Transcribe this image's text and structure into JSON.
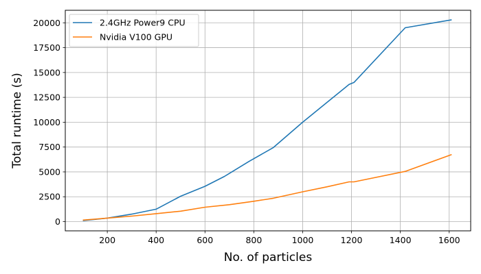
{
  "chart_data": {
    "type": "line",
    "title": "",
    "xlabel": "No. of particles",
    "ylabel": "Total runtime (s)",
    "xlim": [
      28,
      1688
    ],
    "ylim": [
      -930,
      21260
    ],
    "xticks": [
      200,
      400,
      600,
      800,
      1000,
      1200,
      1400,
      1600
    ],
    "yticks": [
      0,
      2500,
      5000,
      7500,
      10000,
      12500,
      15000,
      17500,
      20000
    ],
    "grid": true,
    "legend": {
      "position": "top-left"
    },
    "series": [
      {
        "name": "2.4GHz Power9 CPU",
        "color": "#1f77b4",
        "x": [
          100,
          200,
          300,
          400,
          500,
          600,
          680,
          780,
          880,
          1000,
          1100,
          1190,
          1210,
          1420,
          1610
        ],
        "y": [
          100,
          350,
          750,
          1250,
          2550,
          3550,
          4550,
          6050,
          7450,
          10000,
          12000,
          13800,
          14000,
          19500,
          20300
        ]
      },
      {
        "name": "Nvidia V100 GPU",
        "color": "#ff7f0e",
        "x": [
          100,
          200,
          300,
          400,
          500,
          600,
          700,
          800,
          880,
          1000,
          1100,
          1190,
          1210,
          1420,
          1610
        ],
        "y": [
          150,
          350,
          550,
          800,
          1050,
          1450,
          1700,
          2050,
          2350,
          3000,
          3500,
          4000,
          4000,
          5050,
          6750
        ]
      }
    ]
  }
}
